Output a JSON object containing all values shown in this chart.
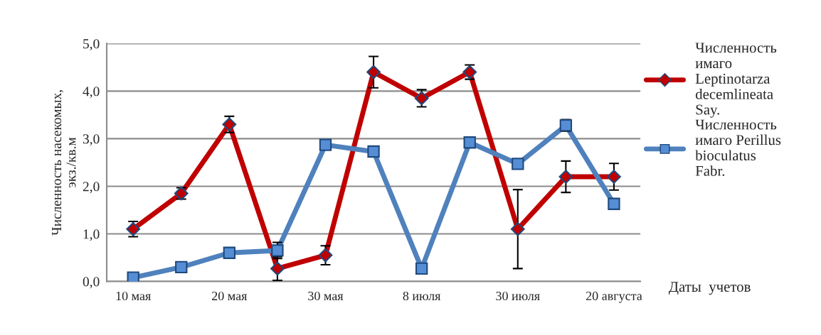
{
  "chart_data": {
    "type": "line",
    "ylabel": "Численность насекомых,\nэкз./кв.м",
    "xlabel": "Даты  учетов",
    "categories": [
      "10 мая",
      null,
      "20 мая",
      null,
      "30 мая",
      null,
      "8 июля",
      null,
      "30 июля",
      null,
      "20 августа"
    ],
    "series": [
      {
        "name": "Численность имаго Leptinotarza decemlineata Say.",
        "color": "#c00000",
        "marker": "diamond",
        "values": [
          1.1,
          1.85,
          3.3,
          0.27,
          0.55,
          4.4,
          3.85,
          4.4,
          1.1,
          2.2,
          2.2
        ],
        "errors": [
          0.16,
          0.12,
          0.17,
          0.25,
          0.2,
          0.33,
          0.18,
          0.15,
          0.83,
          0.33,
          0.28
        ]
      },
      {
        "name": "Численность имаго Perillus bioculatus Fabr.",
        "color": "#4f81bd",
        "marker": "square",
        "values": [
          0.08,
          0.3,
          0.6,
          0.65,
          2.87,
          2.73,
          0.27,
          2.92,
          2.47,
          3.28,
          1.63
        ],
        "errors": [
          null,
          null,
          null,
          0.17,
          null,
          null,
          null,
          null,
          null,
          0.12,
          null
        ]
      }
    ],
    "ylim": [
      0,
      5
    ],
    "yticks": [
      {
        "value": 0,
        "label": "0,0"
      },
      {
        "value": 1,
        "label": "1,0"
      },
      {
        "value": 2,
        "label": "2,0"
      },
      {
        "value": 3,
        "label": "3,0"
      },
      {
        "value": 4,
        "label": "4,0"
      },
      {
        "value": 5,
        "label": "5,0"
      }
    ],
    "grid": "y",
    "legend": "right"
  }
}
